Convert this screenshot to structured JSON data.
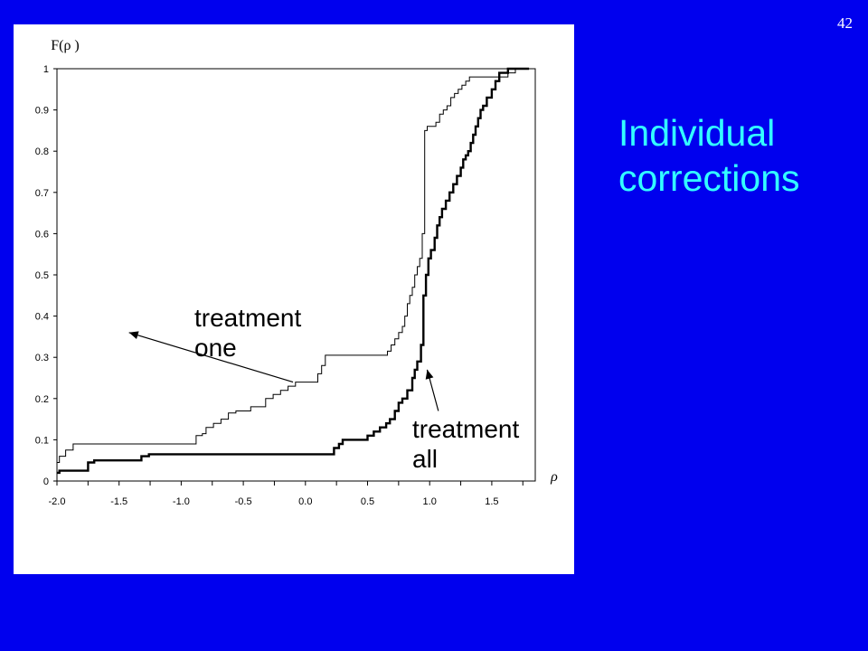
{
  "slide": {
    "number": "42",
    "title": "Individual corrections"
  },
  "colors": {
    "background": "#0000ee",
    "title": "#33ffff",
    "panel": "#ffffff",
    "series": "#000000"
  },
  "chart_data": {
    "type": "line",
    "step": true,
    "ylabel": "F(ρ )",
    "xlabel": "ρ",
    "xlim": [
      -2.0,
      1.85
    ],
    "ylim": [
      0,
      1
    ],
    "xticks": [
      -2.0,
      -1.5,
      -1.0,
      -0.5,
      0.0,
      0.5,
      1.0,
      1.5
    ],
    "xtick_labels": [
      "-2.0",
      "-1.5",
      "-1.0",
      "-0.5",
      "0.0",
      "0.5",
      "1.0",
      "1.5"
    ],
    "yticks": [
      0,
      0.1,
      0.2,
      0.3,
      0.4,
      0.5,
      0.6,
      0.7,
      0.8,
      0.9,
      1
    ],
    "ytick_labels": [
      "0",
      "0.1",
      "0.2",
      "0.3",
      "0.4",
      "0.5",
      "0.6",
      "0.7",
      "0.8",
      "0.9",
      "1"
    ],
    "grid": false,
    "series": [
      {
        "name": "treatment one",
        "weight": "thin",
        "x": [
          -2.0,
          -1.98,
          -1.96,
          -1.93,
          -1.9,
          -1.87,
          -1.85,
          -0.91,
          -0.88,
          -0.86,
          -0.83,
          -0.8,
          -0.77,
          -0.74,
          -0.71,
          -0.68,
          -0.65,
          -0.62,
          -0.59,
          -0.56,
          -0.53,
          -0.5,
          -0.47,
          -0.44,
          -0.41,
          -0.38,
          -0.35,
          -0.32,
          -0.29,
          -0.26,
          -0.23,
          -0.2,
          -0.17,
          -0.14,
          -0.11,
          -0.08,
          0.07,
          0.1,
          0.13,
          0.16,
          0.63,
          0.66,
          0.69,
          0.72,
          0.75,
          0.78,
          0.8,
          0.82,
          0.84,
          0.86,
          0.88,
          0.9,
          0.92,
          0.94,
          0.96,
          0.98,
          1.0,
          1.05,
          1.08,
          1.11,
          1.14,
          1.17,
          1.2,
          1.23,
          1.26,
          1.29,
          1.32,
          1.6,
          1.63,
          1.66,
          1.69,
          1.72,
          1.75,
          1.8
        ],
        "y": [
          0.045,
          0.06,
          0.06,
          0.075,
          0.075,
          0.09,
          0.09,
          0.09,
          0.11,
          0.11,
          0.115,
          0.13,
          0.13,
          0.14,
          0.14,
          0.15,
          0.15,
          0.165,
          0.165,
          0.17,
          0.17,
          0.17,
          0.17,
          0.18,
          0.18,
          0.18,
          0.18,
          0.2,
          0.2,
          0.21,
          0.21,
          0.22,
          0.22,
          0.23,
          0.23,
          0.24,
          0.24,
          0.26,
          0.28,
          0.305,
          0.305,
          0.315,
          0.33,
          0.345,
          0.36,
          0.375,
          0.4,
          0.43,
          0.45,
          0.47,
          0.5,
          0.52,
          0.54,
          0.6,
          0.85,
          0.86,
          0.86,
          0.87,
          0.89,
          0.9,
          0.91,
          0.93,
          0.94,
          0.95,
          0.96,
          0.97,
          0.98,
          0.98,
          0.99,
          0.99,
          1.0,
          1.0,
          1.0,
          1.0
        ]
      },
      {
        "name": "treatment all",
        "weight": "thick",
        "x": [
          -2.0,
          -1.98,
          -1.96,
          -1.94,
          -1.9,
          -1.75,
          -1.72,
          -1.7,
          -1.41,
          -1.38,
          -1.35,
          -1.32,
          -1.29,
          -1.26,
          -1.23,
          0.2,
          0.23,
          0.27,
          0.3,
          0.45,
          0.5,
          0.55,
          0.6,
          0.65,
          0.68,
          0.72,
          0.75,
          0.78,
          0.82,
          0.86,
          0.88,
          0.9,
          0.93,
          0.95,
          0.97,
          0.99,
          1.01,
          1.04,
          1.06,
          1.08,
          1.1,
          1.13,
          1.16,
          1.19,
          1.22,
          1.25,
          1.27,
          1.29,
          1.31,
          1.33,
          1.35,
          1.37,
          1.39,
          1.41,
          1.43,
          1.46,
          1.5,
          1.53,
          1.56,
          1.59,
          1.63,
          1.66,
          1.69,
          1.72,
          1.75,
          1.8
        ],
        "y": [
          0.02,
          0.025,
          0.025,
          0.025,
          0.025,
          0.045,
          0.045,
          0.05,
          0.05,
          0.05,
          0.05,
          0.06,
          0.06,
          0.065,
          0.065,
          0.065,
          0.08,
          0.09,
          0.1,
          0.1,
          0.11,
          0.12,
          0.13,
          0.14,
          0.15,
          0.17,
          0.19,
          0.2,
          0.22,
          0.25,
          0.27,
          0.29,
          0.33,
          0.45,
          0.5,
          0.54,
          0.56,
          0.59,
          0.62,
          0.64,
          0.66,
          0.68,
          0.7,
          0.72,
          0.74,
          0.76,
          0.78,
          0.79,
          0.8,
          0.82,
          0.84,
          0.86,
          0.88,
          0.9,
          0.91,
          0.93,
          0.95,
          0.97,
          0.99,
          0.99,
          1.0,
          1.0,
          1.0,
          1.0,
          1.0,
          1.0
        ]
      }
    ],
    "annotations": [
      {
        "label_lines": [
          "treatment",
          "one"
        ],
        "target_series": "treatment one",
        "arrow_to": [
          -1.42,
          0.36
        ],
        "arrow_from": [
          -0.1,
          0.24
        ]
      },
      {
        "label_lines": [
          "treatment",
          "all"
        ],
        "target_series": "treatment all",
        "arrow_to": [
          0.98,
          0.27
        ],
        "arrow_from": [
          1.07,
          0.17
        ]
      }
    ]
  }
}
